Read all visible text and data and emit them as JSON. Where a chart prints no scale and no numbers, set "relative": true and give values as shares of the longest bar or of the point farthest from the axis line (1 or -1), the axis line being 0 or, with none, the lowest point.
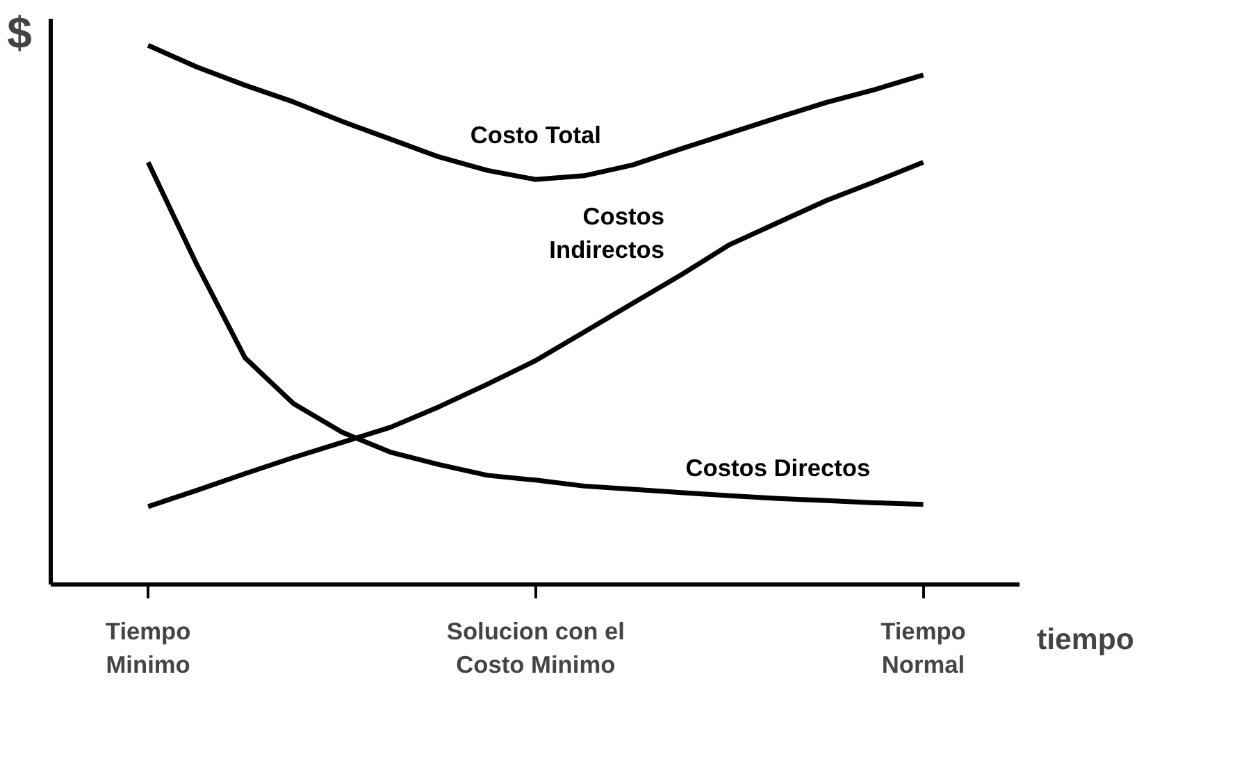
{
  "chart_data": {
    "type": "line",
    "relative": true,
    "ylabel": "$",
    "xlabel": "tiempo",
    "categories": [
      "Tiempo\nMinimo",
      null,
      null,
      null,
      null,
      null,
      null,
      null,
      "Solucion con el\nCosto Minimo",
      null,
      null,
      null,
      null,
      null,
      null,
      null,
      "Tiempo\nNormal"
    ],
    "grid": false,
    "legend": false,
    "marker": "none",
    "line_style": "solid",
    "series": [
      {
        "name": "Costo Total",
        "color": "#000000",
        "values": [
          1.0,
          0.96,
          0.926,
          0.895,
          0.859,
          0.826,
          0.793,
          0.768,
          0.751,
          0.758,
          0.778,
          0.808,
          0.837,
          0.866,
          0.894,
          0.918,
          0.945
        ]
      },
      {
        "name": "Costos\nIndirectos",
        "color": "#000000",
        "values": [
          0.144,
          0.174,
          0.205,
          0.235,
          0.263,
          0.291,
          0.329,
          0.371,
          0.415,
          0.468,
          0.521,
          0.574,
          0.63,
          0.671,
          0.712,
          0.747,
          0.783
        ]
      },
      {
        "name": "Costos Directos",
        "color": "#000000",
        "values": [
          0.783,
          0.594,
          0.42,
          0.335,
          0.282,
          0.245,
          0.222,
          0.202,
          0.193,
          0.182,
          0.176,
          0.17,
          0.164,
          0.159,
          0.155,
          0.151,
          0.148
        ]
      }
    ]
  }
}
